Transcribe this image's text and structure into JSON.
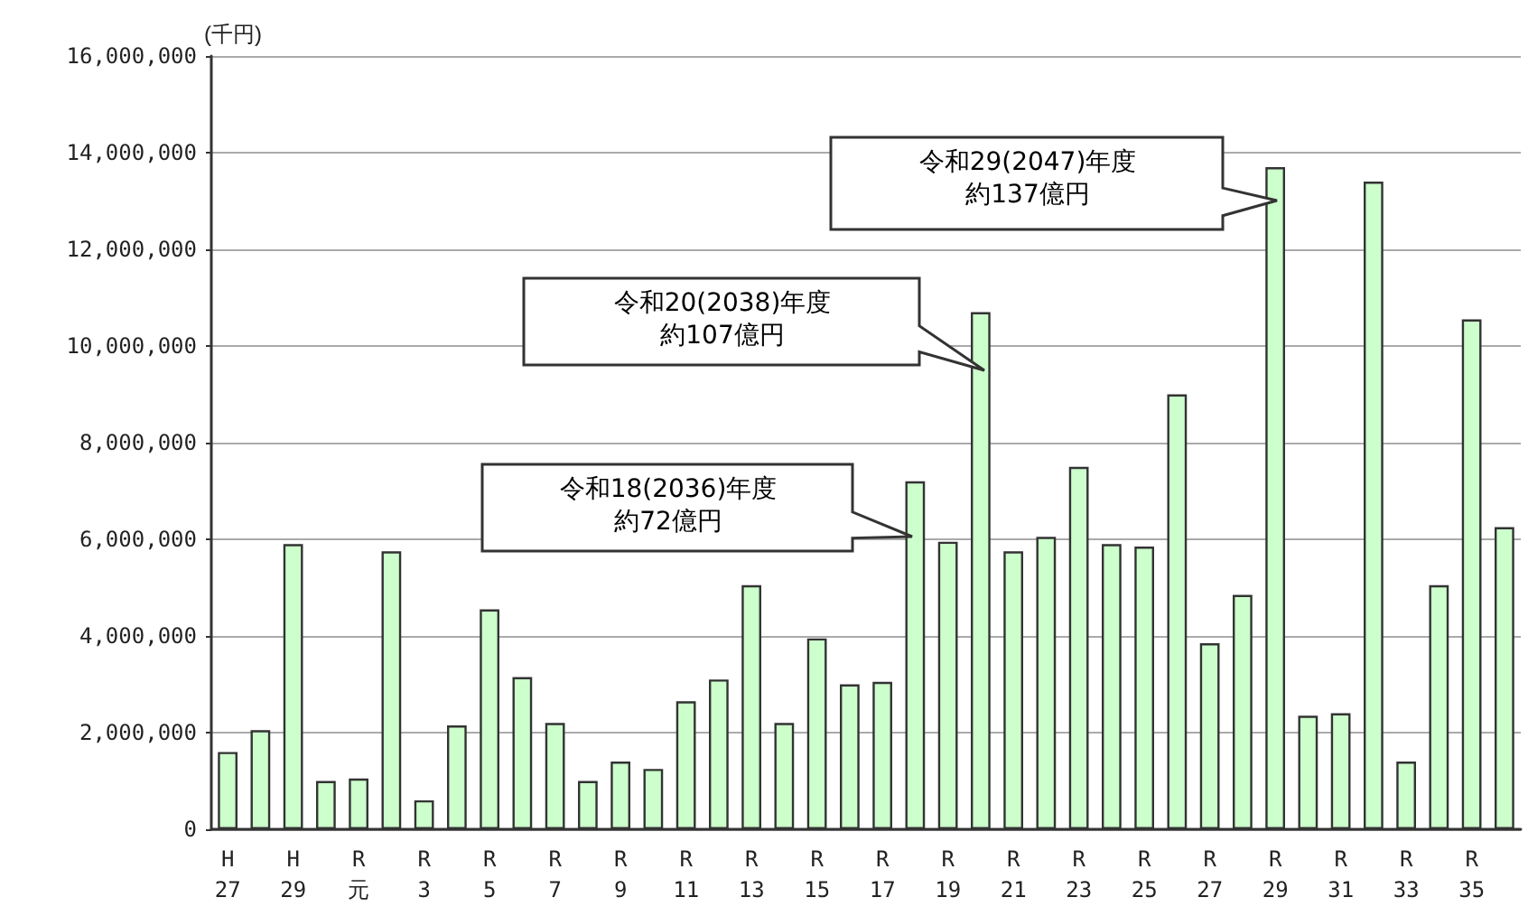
{
  "chart_data": {
    "type": "bar",
    "ylabel": "(千円)",
    "categories": [
      "H\n27",
      null,
      "H\n29",
      null,
      "R\n元",
      null,
      "R\n3",
      null,
      "R\n5",
      null,
      "R\n7",
      null,
      "R\n9",
      null,
      "R\n11",
      null,
      "R\n13",
      null,
      "R\n15",
      null,
      "R\n17",
      null,
      "R\n19",
      null,
      "R\n21",
      null,
      "R\n23",
      null,
      "R\n25",
      null,
      "R\n27",
      null,
      "R\n29",
      null,
      "R\n31",
      null,
      "R\n33",
      null,
      "R\n35",
      null
    ],
    "values": [
      1600000,
      2050000,
      5900000,
      1000000,
      1050000,
      5750000,
      600000,
      2150000,
      4550000,
      3150000,
      2200000,
      1000000,
      1400000,
      1250000,
      2650000,
      3100000,
      5050000,
      2200000,
      3950000,
      3000000,
      3050000,
      7200000,
      5950000,
      10700000,
      5750000,
      6050000,
      7500000,
      5900000,
      5850000,
      9000000,
      3850000,
      4850000,
      13700000,
      2350000,
      2400000,
      13400000,
      1400000,
      5050000,
      10550000,
      6250000
    ],
    "color": "#ccffcc",
    "ylim": [
      0,
      16000000
    ],
    "yticks": [
      {
        "value": 0,
        "label": "0"
      },
      {
        "value": 2000000,
        "label": "2,000,000"
      },
      {
        "value": 4000000,
        "label": "4,000,000"
      },
      {
        "value": 6000000,
        "label": "6,000,000"
      },
      {
        "value": 8000000,
        "label": "8,000,000"
      },
      {
        "value": 10000000,
        "label": "10,000,000"
      },
      {
        "value": 12000000,
        "label": "12,000,000"
      },
      {
        "value": 14000000,
        "label": "14,000,000"
      },
      {
        "value": 16000000,
        "label": "16,000,000"
      }
    ],
    "grid": "y",
    "annotations": [
      "令和18(2036)年度",
      "約72億円",
      "令和20(2038)年度",
      "約107億円",
      "令和29(2047)年度",
      "約137億円"
    ]
  }
}
